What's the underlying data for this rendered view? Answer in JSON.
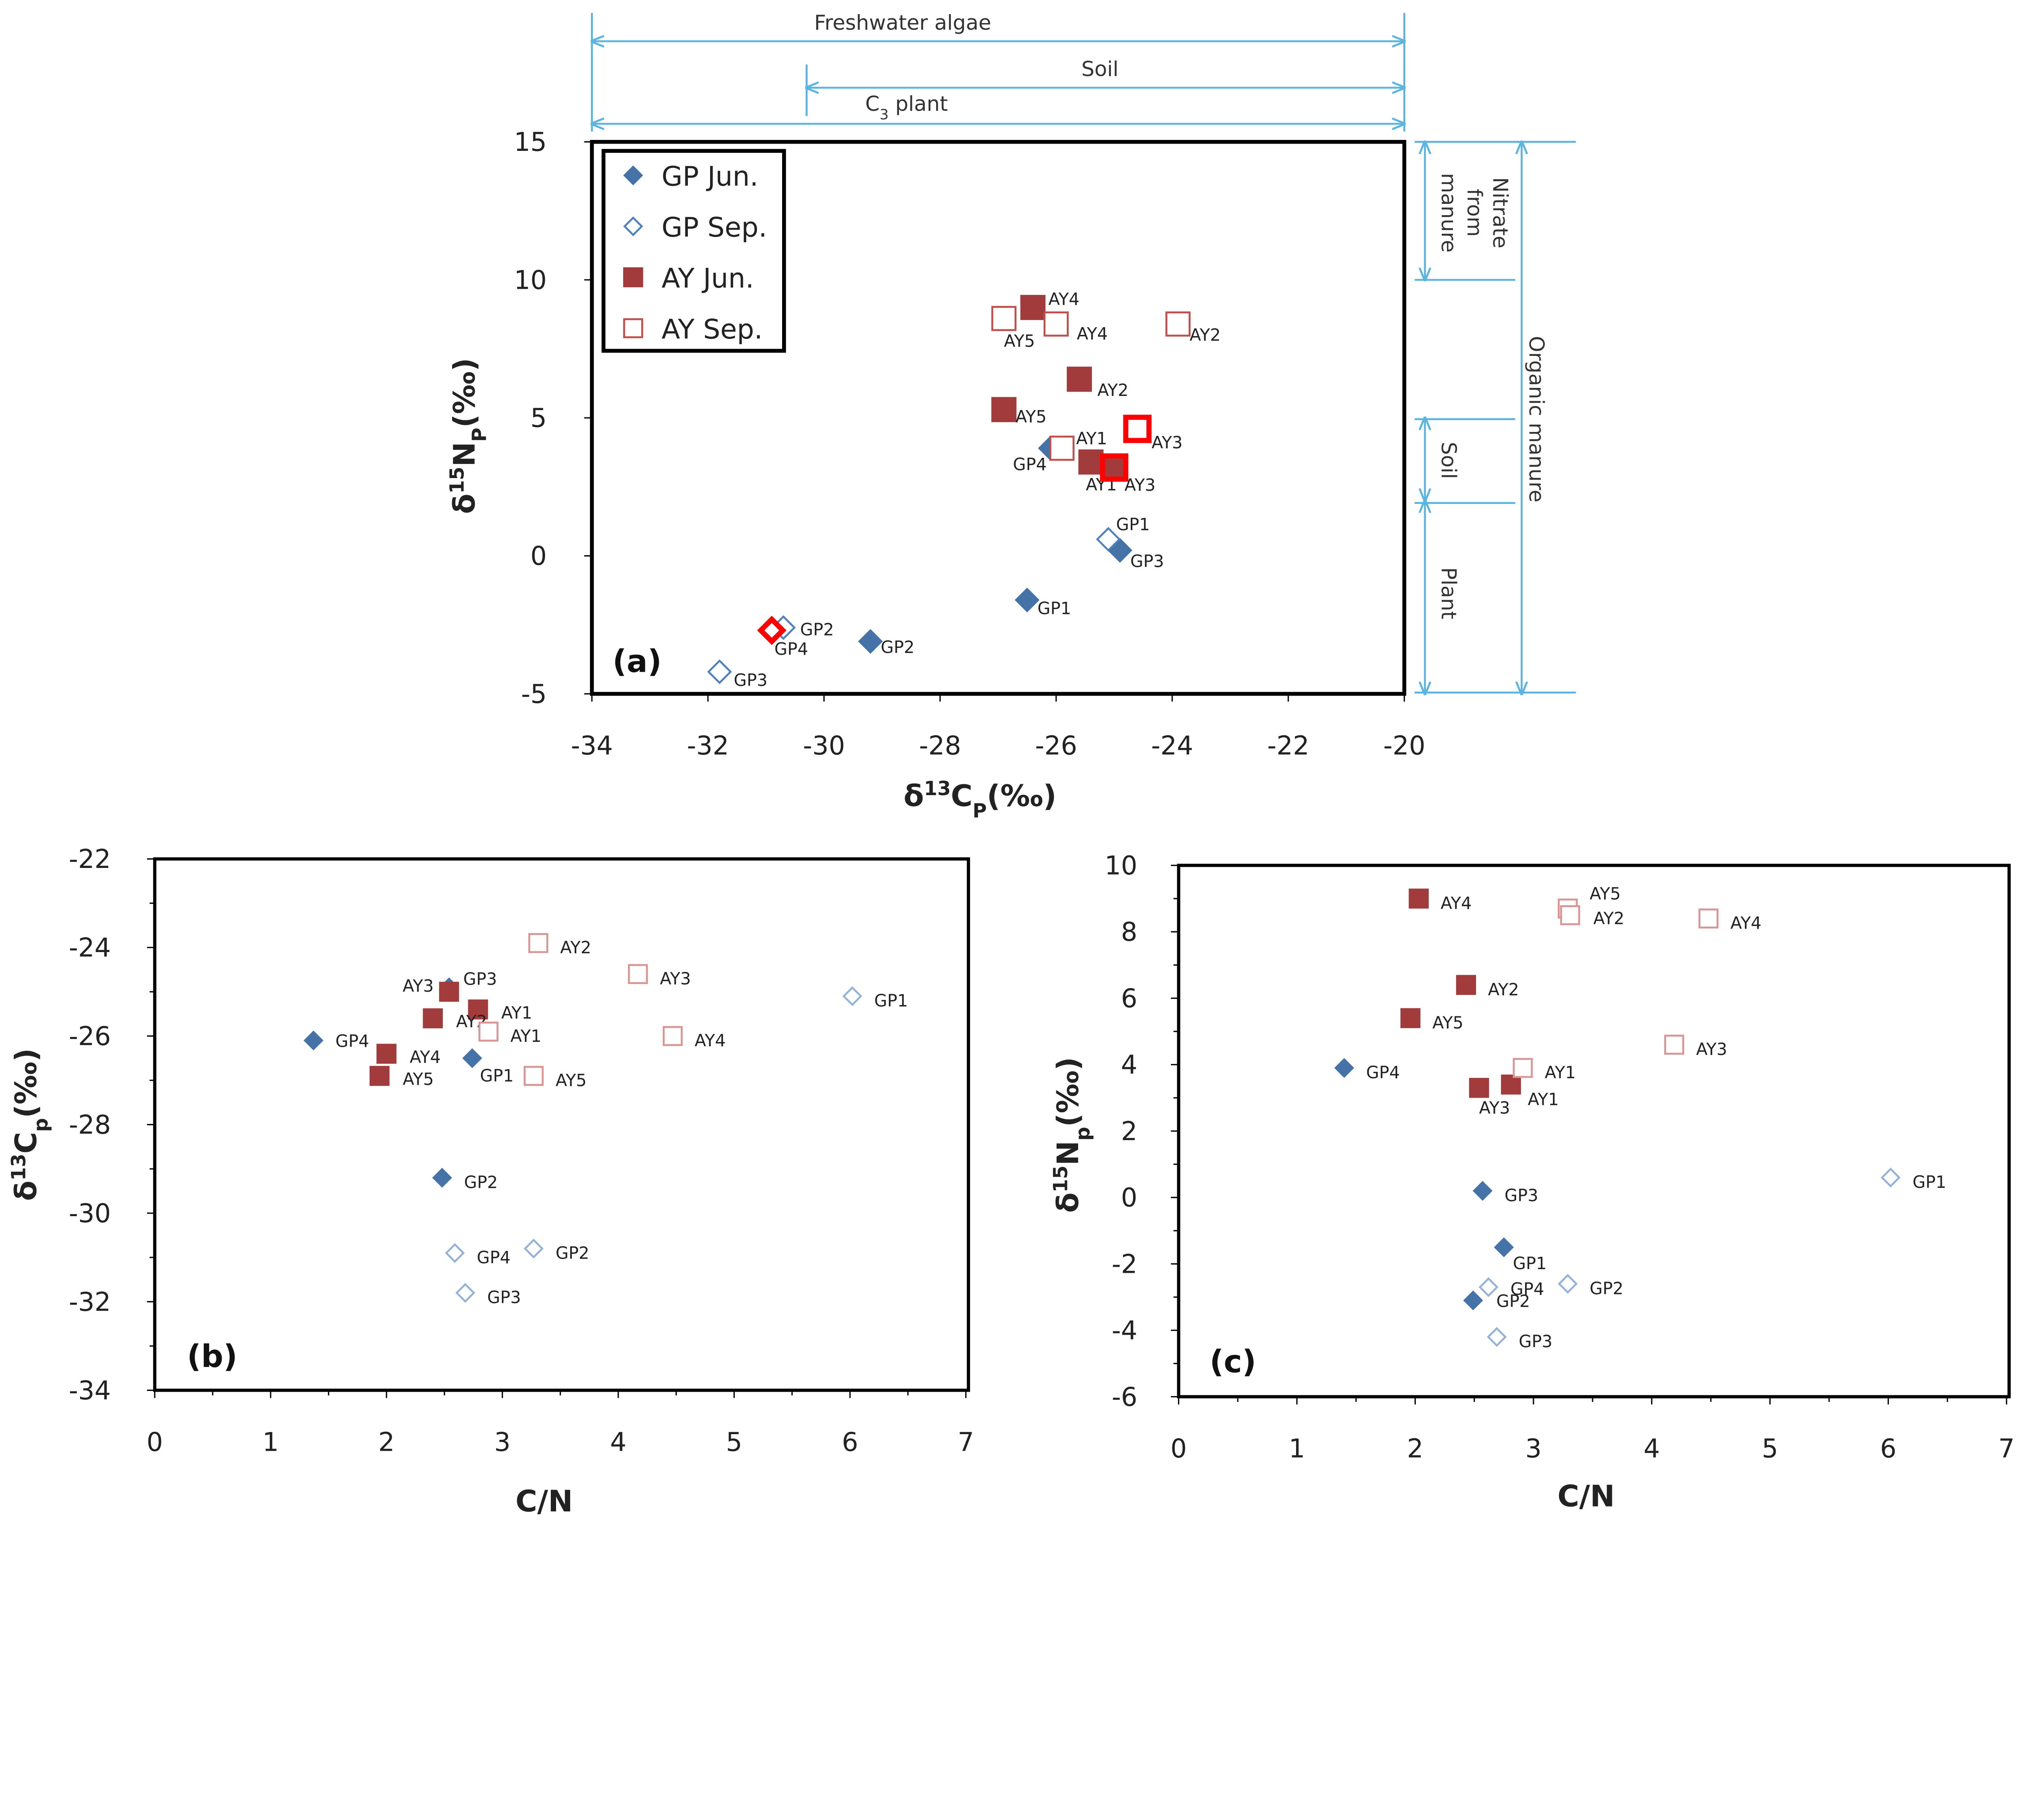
{
  "colors": {
    "gp_jun": "#4572a7",
    "gp_sep": "#4f81bd",
    "gp_sep_light": "#95b3d7",
    "ay_jun": "#a23b3b",
    "ay_sep": "#c0504d",
    "ay_sep_light": "#d99694",
    "highlight": "#ff0000",
    "annotation_line": "#5bb5e0"
  },
  "legend": {
    "placement": "top-left",
    "items": [
      {
        "name": "GP Jun.",
        "marker": "filled-diamond"
      },
      {
        "name": "GP Sep.",
        "marker": "open-diamond"
      },
      {
        "name": "AY Jun.",
        "marker": "filled-square"
      },
      {
        "name": "AY Sep.",
        "marker": "open-square"
      }
    ]
  },
  "annotations": {
    "top": [
      {
        "label": "Freshwater algae",
        "range": [
          -34,
          -20
        ]
      },
      {
        "label": "Soil",
        "range": [
          -30.3,
          -20
        ]
      },
      {
        "label_base": "C",
        "label_sub": "3",
        "label_rest": " plant",
        "range": [
          -34,
          -20
        ]
      }
    ],
    "right": [
      {
        "lines": [
          "Nitrate",
          "from",
          "manure"
        ],
        "range": [
          10,
          15
        ]
      },
      {
        "lines": [
          "Soil"
        ],
        "range": [
          2,
          5
        ]
      },
      {
        "lines": [
          "Plant"
        ],
        "range": [
          -5,
          2
        ]
      },
      {
        "lines": [
          "Organic manure"
        ],
        "range": [
          -5,
          15
        ]
      }
    ]
  },
  "chart_data": [
    {
      "panel": "(a)",
      "type": "scatter",
      "xlabel": {
        "pre": "δ",
        "sup": "13",
        "base": "C",
        "sub": "P",
        "post": "(‰)"
      },
      "ylabel": {
        "pre": "δ",
        "sup": "15",
        "base": "N",
        "sub": "P",
        "post": "(‰)"
      },
      "xlim": [
        -34,
        -20
      ],
      "ylim": [
        -5,
        15
      ],
      "xticks": [
        "-34",
        "-32",
        "-30",
        "-28",
        "-26",
        "-24",
        "-22",
        "-20"
      ],
      "yticks": [
        "-5",
        "0",
        "5",
        "10",
        "15"
      ],
      "grid": false,
      "series": [
        {
          "name": "GP Jun.",
          "points": [
            {
              "label": "GP4",
              "x": -26.1,
              "y": 3.9
            },
            {
              "label": "GP3",
              "x": -24.9,
              "y": 0.2
            },
            {
              "label": "GP1",
              "x": -26.5,
              "y": -1.6
            },
            {
              "label": "GP2",
              "x": -29.2,
              "y": -3.1
            }
          ]
        },
        {
          "name": "GP Sep.",
          "points": [
            {
              "label": "GP1",
              "x": -25.1,
              "y": 0.6
            },
            {
              "label": "GP2",
              "x": -30.7,
              "y": -2.6
            },
            {
              "label": "GP3",
              "x": -31.8,
              "y": -4.2
            },
            {
              "label": "GP4",
              "x": -30.9,
              "y": -2.7,
              "highlight": true
            }
          ]
        },
        {
          "name": "AY Jun.",
          "points": [
            {
              "label": "AY4",
              "x": -26.4,
              "y": 9.0
            },
            {
              "label": "AY2",
              "x": -25.6,
              "y": 6.4
            },
            {
              "label": "AY5",
              "x": -26.9,
              "y": 5.3
            },
            {
              "label": "AY1",
              "x": -25.4,
              "y": 3.4
            },
            {
              "label": "AY3",
              "x": -25.0,
              "y": 3.2,
              "highlight": true
            }
          ]
        },
        {
          "name": "AY Sep.",
          "points": [
            {
              "label": "AY5",
              "x": -26.9,
              "y": 8.6
            },
            {
              "label": "AY4",
              "x": -26.0,
              "y": 8.4
            },
            {
              "label": "AY2",
              "x": -23.9,
              "y": 8.4
            },
            {
              "label": "AY3",
              "x": -24.6,
              "y": 4.6,
              "highlight": true
            },
            {
              "label": "AY1",
              "x": -25.9,
              "y": 3.9
            }
          ]
        }
      ]
    },
    {
      "panel": "(b)",
      "type": "scatter",
      "xlabel": {
        "pre": "",
        "sup": "",
        "base": "C/N",
        "sub": "",
        "post": ""
      },
      "ylabel": {
        "pre": "δ",
        "sup": "13",
        "base": "C",
        "sub": "p",
        "post": "(‰)"
      },
      "xlim": [
        0,
        7
      ],
      "ylim": [
        -34,
        -22
      ],
      "xticks": [
        "0",
        "1",
        "2",
        "3",
        "4",
        "5",
        "6",
        "7"
      ],
      "yticks": [
        "-34",
        "-32",
        "-30",
        "-28",
        "-26",
        "-24",
        "-22"
      ],
      "grid": false,
      "series": [
        {
          "name": "GP Jun.",
          "points": [
            {
              "label": "GP4",
              "x": 1.37,
              "y": -26.1
            },
            {
              "label": "GP1",
              "x": 2.74,
              "y": -26.5
            },
            {
              "label": "GP2",
              "x": 2.48,
              "y": -29.2
            },
            {
              "label": "GP3",
              "x": 2.54,
              "y": -24.9
            }
          ]
        },
        {
          "name": "GP Sep.",
          "points": [
            {
              "label": "GP1",
              "x": 6.02,
              "y": -25.1
            },
            {
              "label": "GP2",
              "x": 3.27,
              "y": -30.8
            },
            {
              "label": "GP4",
              "x": 2.59,
              "y": -30.9
            },
            {
              "label": "GP3",
              "x": 2.68,
              "y": -31.8
            }
          ]
        },
        {
          "name": "AY Jun.",
          "points": [
            {
              "label": "AY3",
              "x": 2.54,
              "y": -25.0
            },
            {
              "label": "AY1",
              "x": 2.79,
              "y": -25.4
            },
            {
              "label": "AY2",
              "x": 2.4,
              "y": -25.6
            },
            {
              "label": "AY4",
              "x": 2.0,
              "y": -26.4
            },
            {
              "label": "AY5",
              "x": 1.94,
              "y": -26.9
            }
          ]
        },
        {
          "name": "AY Sep.",
          "points": [
            {
              "label": "AY2",
              "x": 3.31,
              "y": -23.9
            },
            {
              "label": "AY3",
              "x": 4.17,
              "y": -24.6
            },
            {
              "label": "AY1",
              "x": 2.88,
              "y": -25.9
            },
            {
              "label": "AY4",
              "x": 4.47,
              "y": -26.0
            },
            {
              "label": "AY5",
              "x": 3.27,
              "y": -26.9
            }
          ]
        }
      ]
    },
    {
      "panel": "(c)",
      "type": "scatter",
      "xlabel": {
        "pre": "",
        "sup": "",
        "base": "C/N",
        "sub": "",
        "post": ""
      },
      "ylabel": {
        "pre": "δ",
        "sup": "15",
        "base": "N",
        "sub": "p",
        "post": "(‰)"
      },
      "xlim": [
        0,
        7
      ],
      "ylim": [
        -6,
        10
      ],
      "xticks": [
        "0",
        "1",
        "2",
        "3",
        "4",
        "5",
        "6",
        "7"
      ],
      "yticks": [
        "-6",
        "-4",
        "-2",
        "0",
        "2",
        "4",
        "6",
        "8",
        "10"
      ],
      "grid": false,
      "series": [
        {
          "name": "GP Jun.",
          "points": [
            {
              "label": "GP4",
              "x": 1.4,
              "y": 3.9
            },
            {
              "label": "GP3",
              "x": 2.57,
              "y": 0.2
            },
            {
              "label": "GP1",
              "x": 2.75,
              "y": -1.5
            },
            {
              "label": "GP2",
              "x": 2.49,
              "y": -3.1
            }
          ]
        },
        {
          "name": "GP Sep.",
          "points": [
            {
              "label": "GP1",
              "x": 6.02,
              "y": 0.6
            },
            {
              "label": "GP2",
              "x": 3.29,
              "y": -2.6
            },
            {
              "label": "GP4",
              "x": 2.62,
              "y": -2.7
            },
            {
              "label": "GP3",
              "x": 2.69,
              "y": -4.2
            }
          ]
        },
        {
          "name": "AY Jun.",
          "points": [
            {
              "label": "AY4",
              "x": 2.03,
              "y": 9.0
            },
            {
              "label": "AY2",
              "x": 2.43,
              "y": 6.4
            },
            {
              "label": "AY5",
              "x": 1.96,
              "y": 5.4
            },
            {
              "label": "AY1",
              "x": 2.81,
              "y": 3.4
            },
            {
              "label": "AY3",
              "x": 2.54,
              "y": 3.3
            }
          ]
        },
        {
          "name": "AY Sep.",
          "points": [
            {
              "label": "AY5",
              "x": 3.29,
              "y": 8.7
            },
            {
              "label": "AY2",
              "x": 3.31,
              "y": 8.5
            },
            {
              "label": "AY4",
              "x": 4.48,
              "y": 8.4
            },
            {
              "label": "AY3",
              "x": 4.19,
              "y": 4.6
            },
            {
              "label": "AY1",
              "x": 2.91,
              "y": 3.9
            }
          ]
        }
      ]
    }
  ]
}
